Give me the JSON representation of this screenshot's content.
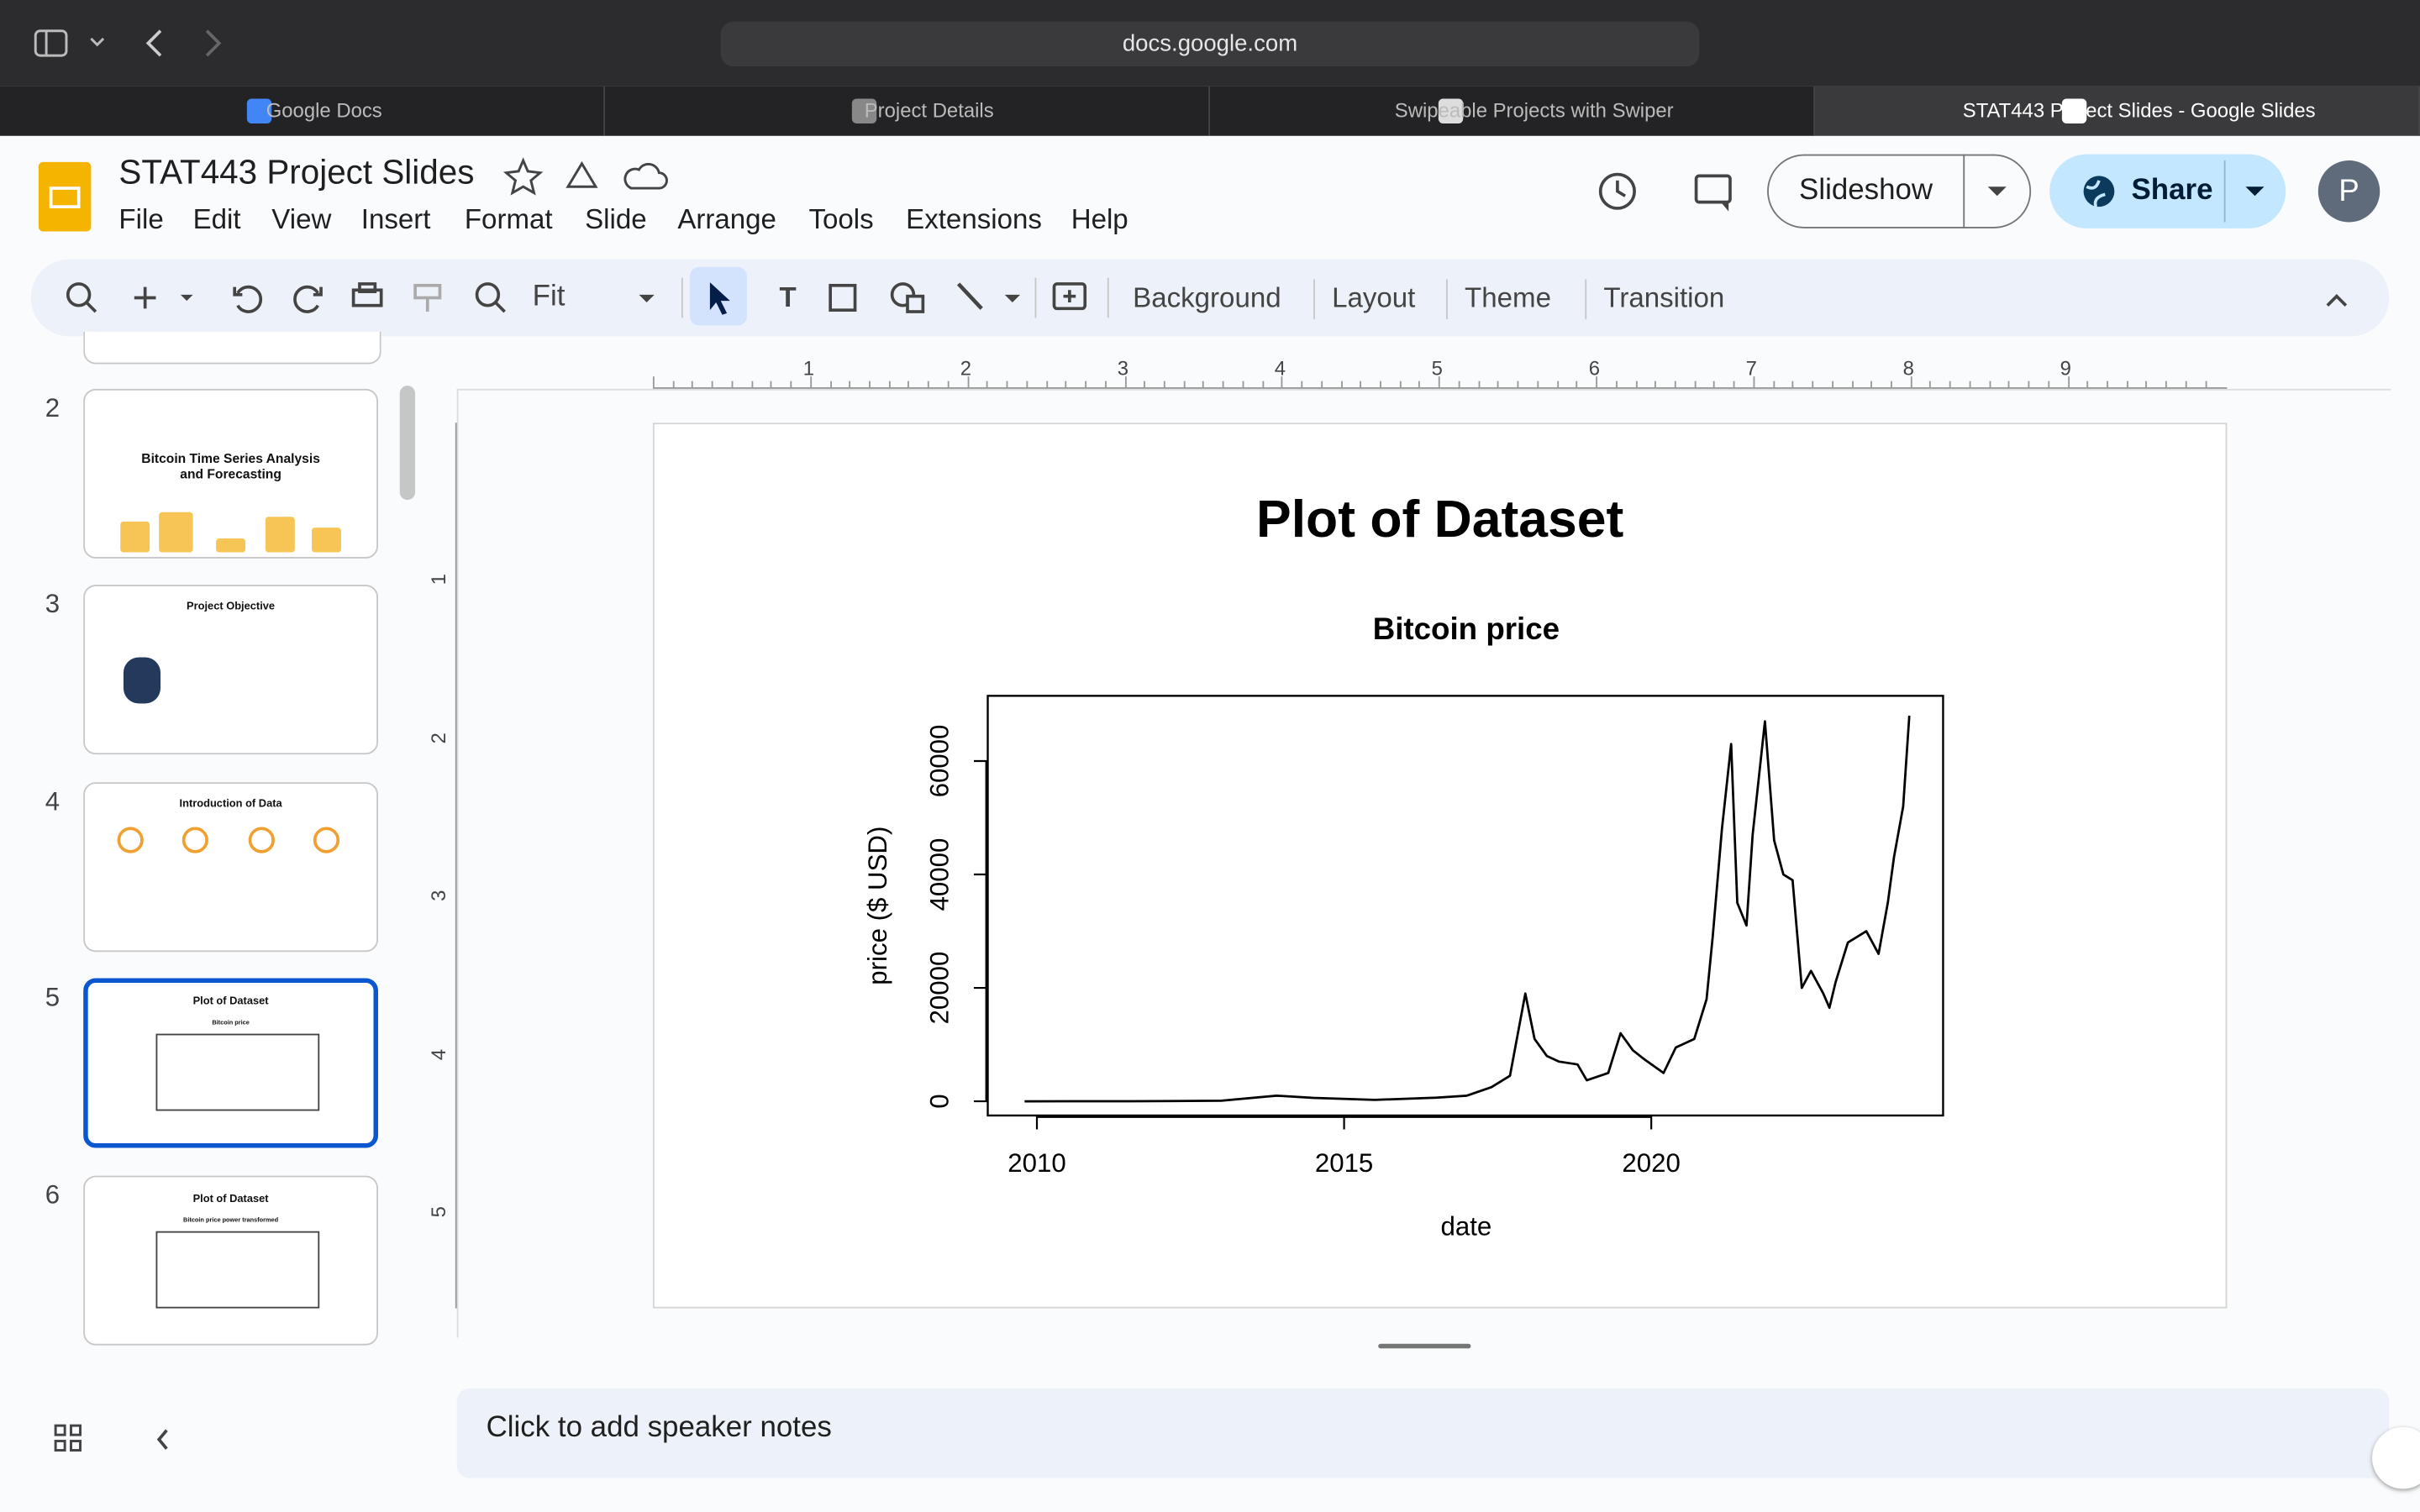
{
  "browser": {
    "url": "docs.google.com",
    "tabs": [
      "Google Docs",
      "Project Details",
      "Swipeable Projects with Swiper",
      "STAT443 Project Slides - Google Slides"
    ]
  },
  "app": {
    "title": "STAT443 Project Slides",
    "menu": [
      "File",
      "Edit",
      "View",
      "Insert",
      "Format",
      "Slide",
      "Arrange",
      "Tools",
      "Extensions",
      "Help"
    ],
    "slideshow": "Slideshow",
    "share": "Share",
    "avatar": "P"
  },
  "toolbar": {
    "zoom": "Fit",
    "buttons": [
      "Background",
      "Layout",
      "Theme",
      "Transition"
    ]
  },
  "ruler": {
    "horizontal": [
      1,
      2,
      3,
      4,
      5,
      6,
      7,
      8,
      9
    ],
    "vertical": [
      1,
      2,
      3,
      4,
      5
    ]
  },
  "thumbnails": [
    {
      "number": 2,
      "title": "Bitcoin Time Series Analysis and Forecasting"
    },
    {
      "number": 3,
      "title": "Project Objective"
    },
    {
      "number": 4,
      "title": "Introduction of Data"
    },
    {
      "number": 5,
      "title": "Plot of Dataset",
      "subtitle": "Bitcoin price"
    },
    {
      "number": 6,
      "title": "Plot of Dataset",
      "subtitle": "Bitcoin price power transformed"
    }
  ],
  "slide": {
    "title": "Plot of Dataset"
  },
  "chart_data": {
    "type": "line",
    "title": "Bitcoin price",
    "x_label": "date",
    "y_label": "price ($ USD)",
    "color": "#000000",
    "x": [
      2009.8,
      2011.5,
      2013.0,
      2013.9,
      2014.5,
      2015.5,
      2016.5,
      2017.0,
      2017.4,
      2017.7,
      2017.95,
      2018.1,
      2018.3,
      2018.5,
      2018.8,
      2018.95,
      2019.3,
      2019.5,
      2019.7,
      2019.9,
      2020.2,
      2020.4,
      2020.7,
      2020.9,
      2021.0,
      2021.15,
      2021.3,
      2021.4,
      2021.55,
      2021.65,
      2021.85,
      2022.0,
      2022.15,
      2022.3,
      2022.45,
      2022.6,
      2022.8,
      2022.9,
      2023.0,
      2023.2,
      2023.5,
      2023.7,
      2023.85,
      2023.95,
      2024.1,
      2024.2
    ],
    "values": [
      0,
      10,
      100,
      1000,
      600,
      250,
      650,
      1000,
      2500,
      4500,
      19000,
      11000,
      8000,
      7000,
      6500,
      3700,
      5000,
      12000,
      9000,
      7300,
      5000,
      9500,
      11000,
      18000,
      29000,
      48000,
      63000,
      35000,
      31000,
      47000,
      67000,
      46000,
      40000,
      39000,
      20000,
      23000,
      19000,
      16500,
      21000,
      28000,
      30000,
      26000,
      35000,
      43000,
      52000,
      68000
    ],
    "xlim": [
      2009.2,
      2024.75
    ],
    "ylim": [
      -2500,
      71500
    ],
    "xticks": [
      2010,
      2015,
      2020
    ],
    "yticks": [
      0,
      20000,
      40000,
      60000
    ]
  },
  "notes": "Click to add speaker notes"
}
